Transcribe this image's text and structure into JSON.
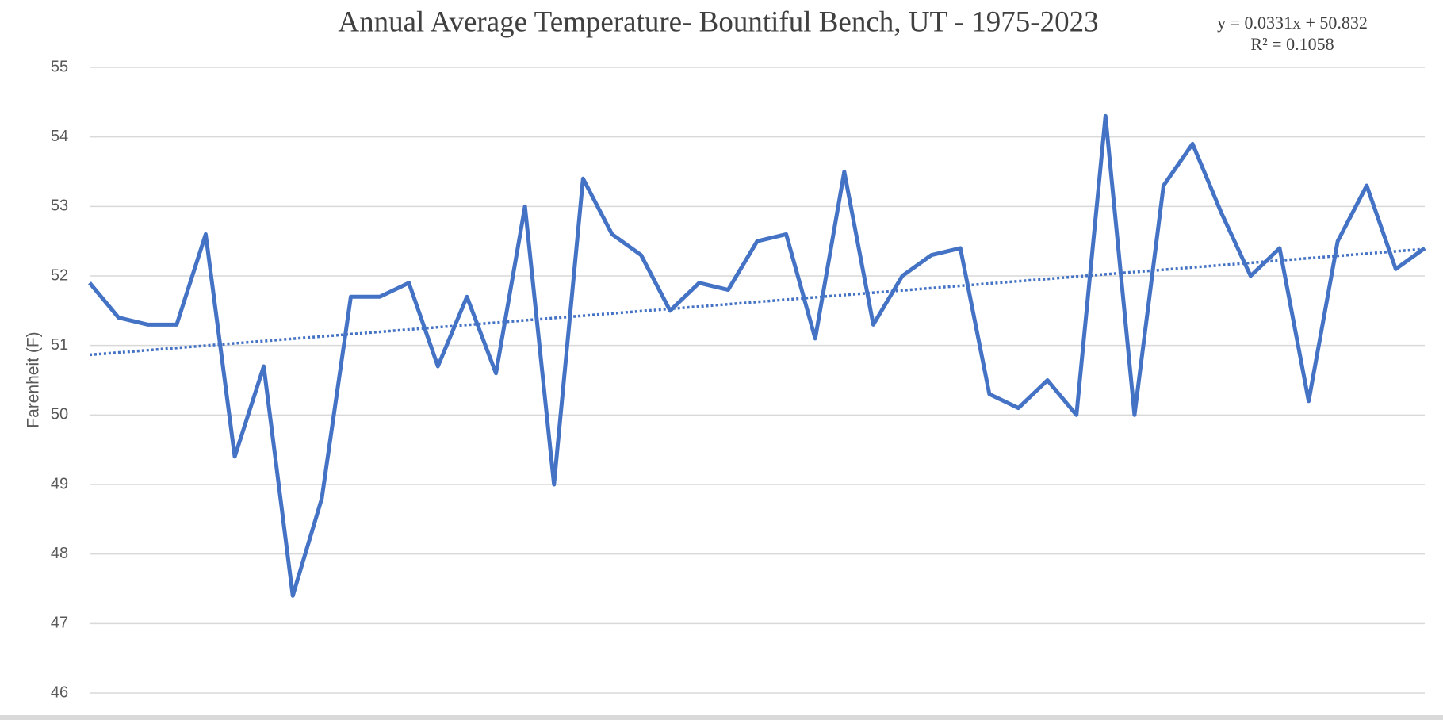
{
  "chart_data": {
    "type": "line",
    "title": "Annual Average Temperature- Bountiful Bench, UT - 1975-2023",
    "y_label": "Farenheit (F)",
    "series": [
      {
        "name": null,
        "color": "#4472c4",
        "values": [
          51.9,
          51.4,
          51.3,
          51.3,
          52.6,
          49.4,
          50.7,
          47.4,
          48.8,
          51.7,
          51.7,
          51.9,
          50.7,
          51.7,
          50.6,
          53.0,
          49.0,
          53.4,
          52.6,
          52.3,
          51.5,
          51.9,
          51.8,
          52.5,
          52.6,
          51.1,
          53.5,
          51.3,
          52.0,
          52.3,
          52.4,
          50.3,
          50.1,
          50.5,
          50.0,
          54.3,
          50.0,
          53.3,
          53.9,
          52.9,
          52.0,
          52.4,
          50.2,
          52.5,
          53.3,
          52.1,
          52.4
        ]
      }
    ],
    "trendline": {
      "slope": 0.0331,
      "intercept": 50.832,
      "color": "#4472c4",
      "label": "y = 0.0331x + 50.832",
      "r2_label": "R² = 0.1058"
    },
    "ylim": [
      46,
      55
    ],
    "yticks": [
      46,
      47,
      48,
      49,
      50,
      51,
      52,
      53,
      54,
      55
    ],
    "grid": true
  }
}
